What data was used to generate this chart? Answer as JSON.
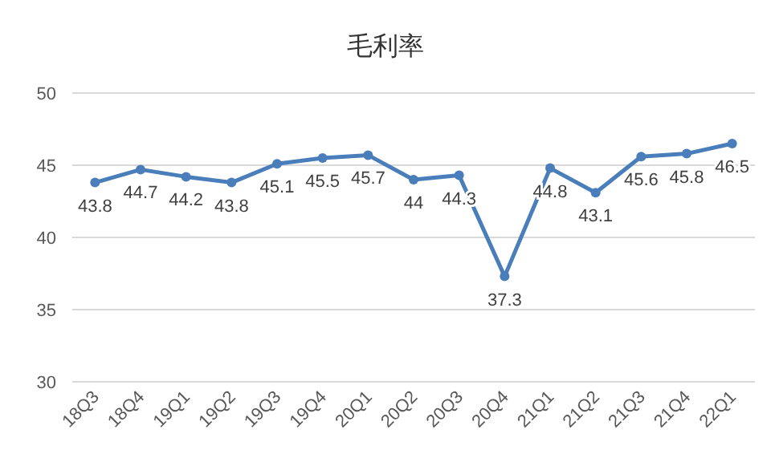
{
  "chart_data": {
    "type": "line",
    "title": "毛利率",
    "categories": [
      "18Q3",
      "18Q4",
      "19Q1",
      "19Q2",
      "19Q3",
      "19Q4",
      "20Q1",
      "20Q2",
      "20Q3",
      "20Q4",
      "21Q1",
      "21Q2",
      "21Q3",
      "21Q4",
      "22Q1"
    ],
    "series": [
      {
        "color": "#4a7ebb",
        "values": [
          43.8,
          44.7,
          44.2,
          43.8,
          45.1,
          45.5,
          45.7,
          44,
          44.3,
          37.3,
          44.8,
          43.1,
          45.6,
          45.8,
          46.5
        ]
      }
    ],
    "ylim": [
      30,
      50
    ],
    "yticks": [
      30,
      35,
      40,
      45,
      50
    ],
    "grid": "y",
    "marker": "circle",
    "line_style": "solid",
    "data_labels": true
  }
}
